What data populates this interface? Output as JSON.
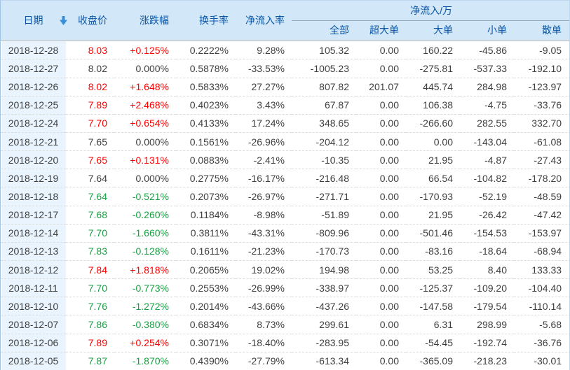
{
  "table": {
    "headers": {
      "date": "日期",
      "close": "收盘价",
      "change": "涨跌幅",
      "turnover": "换手率",
      "inflow_rate": "净流入率",
      "inflow_group": "净流入/万",
      "sub": [
        "全部",
        "超大单",
        "大单",
        "小单",
        "散单"
      ]
    },
    "rows": [
      {
        "date": "2018-12-28",
        "close": "8.03",
        "change": "+0.125%",
        "turnover": "0.2222%",
        "inflow_rate": "9.28%",
        "all": "105.32",
        "super_large": "0.00",
        "large": "160.22",
        "small": "-45.86",
        "scattered": "-9.05"
      },
      {
        "date": "2018-12-27",
        "close": "8.02",
        "change": "0.000%",
        "turnover": "0.5878%",
        "inflow_rate": "-33.53%",
        "all": "-1005.23",
        "super_large": "0.00",
        "large": "-275.81",
        "small": "-537.33",
        "scattered": "-192.10"
      },
      {
        "date": "2018-12-26",
        "close": "8.02",
        "change": "+1.648%",
        "turnover": "0.5833%",
        "inflow_rate": "27.27%",
        "all": "807.82",
        "super_large": "201.07",
        "large": "445.74",
        "small": "284.98",
        "scattered": "-123.97"
      },
      {
        "date": "2018-12-25",
        "close": "7.89",
        "change": "+2.468%",
        "turnover": "0.4023%",
        "inflow_rate": "3.43%",
        "all": "67.87",
        "super_large": "0.00",
        "large": "106.38",
        "small": "-4.75",
        "scattered": "-33.76"
      },
      {
        "date": "2018-12-24",
        "close": "7.70",
        "change": "+0.654%",
        "turnover": "0.4133%",
        "inflow_rate": "17.24%",
        "all": "348.65",
        "super_large": "0.00",
        "large": "-266.60",
        "small": "282.55",
        "scattered": "332.70"
      },
      {
        "date": "2018-12-21",
        "close": "7.65",
        "change": "0.000%",
        "turnover": "0.1561%",
        "inflow_rate": "-26.96%",
        "all": "-204.12",
        "super_large": "0.00",
        "large": "0.00",
        "small": "-143.04",
        "scattered": "-61.08"
      },
      {
        "date": "2018-12-20",
        "close": "7.65",
        "change": "+0.131%",
        "turnover": "0.0883%",
        "inflow_rate": "-2.41%",
        "all": "-10.35",
        "super_large": "0.00",
        "large": "21.95",
        "small": "-4.87",
        "scattered": "-27.43"
      },
      {
        "date": "2018-12-19",
        "close": "7.64",
        "change": "0.000%",
        "turnover": "0.2775%",
        "inflow_rate": "-16.17%",
        "all": "-216.48",
        "super_large": "0.00",
        "large": "66.54",
        "small": "-104.82",
        "scattered": "-178.20"
      },
      {
        "date": "2018-12-18",
        "close": "7.64",
        "change": "-0.521%",
        "turnover": "0.2073%",
        "inflow_rate": "-26.97%",
        "all": "-271.71",
        "super_large": "0.00",
        "large": "-170.93",
        "small": "-52.19",
        "scattered": "-48.59"
      },
      {
        "date": "2018-12-17",
        "close": "7.68",
        "change": "-0.260%",
        "turnover": "0.1184%",
        "inflow_rate": "-8.98%",
        "all": "-51.89",
        "super_large": "0.00",
        "large": "21.95",
        "small": "-26.42",
        "scattered": "-47.42"
      },
      {
        "date": "2018-12-14",
        "close": "7.70",
        "change": "-1.660%",
        "turnover": "0.3811%",
        "inflow_rate": "-43.31%",
        "all": "-809.96",
        "super_large": "0.00",
        "large": "-501.46",
        "small": "-154.53",
        "scattered": "-153.97"
      },
      {
        "date": "2018-12-13",
        "close": "7.83",
        "change": "-0.128%",
        "turnover": "0.1611%",
        "inflow_rate": "-21.23%",
        "all": "-170.73",
        "super_large": "0.00",
        "large": "-83.16",
        "small": "-18.64",
        "scattered": "-68.94"
      },
      {
        "date": "2018-12-12",
        "close": "7.84",
        "change": "+1.818%",
        "turnover": "0.2065%",
        "inflow_rate": "19.02%",
        "all": "194.98",
        "super_large": "0.00",
        "large": "53.25",
        "small": "8.40",
        "scattered": "133.33"
      },
      {
        "date": "2018-12-11",
        "close": "7.70",
        "change": "-0.773%",
        "turnover": "0.2553%",
        "inflow_rate": "-26.99%",
        "all": "-338.97",
        "super_large": "0.00",
        "large": "-125.37",
        "small": "-109.20",
        "scattered": "-104.40"
      },
      {
        "date": "2018-12-10",
        "close": "7.76",
        "change": "-1.272%",
        "turnover": "0.2014%",
        "inflow_rate": "-43.66%",
        "all": "-437.26",
        "super_large": "0.00",
        "large": "-147.58",
        "small": "-179.54",
        "scattered": "-110.14"
      },
      {
        "date": "2018-12-07",
        "close": "7.86",
        "change": "-0.380%",
        "turnover": "0.6834%",
        "inflow_rate": "8.73%",
        "all": "299.61",
        "super_large": "0.00",
        "large": "6.31",
        "small": "298.99",
        "scattered": "-5.68"
      },
      {
        "date": "2018-12-06",
        "close": "7.89",
        "change": "+0.254%",
        "turnover": "0.3071%",
        "inflow_rate": "-18.40%",
        "all": "-283.95",
        "super_large": "0.00",
        "large": "-54.45",
        "small": "-192.74",
        "scattered": "-36.76"
      },
      {
        "date": "2018-12-05",
        "close": "7.87",
        "change": "-1.870%",
        "turnover": "0.4390%",
        "inflow_rate": "-27.79%",
        "all": "-613.34",
        "super_large": "0.00",
        "large": "-365.09",
        "small": "-218.23",
        "scattered": "-30.01"
      }
    ]
  },
  "colors": {
    "header_bg": "#d2e8f9",
    "header_text": "#0a55a5",
    "date_col_bg": "#e9f4fe",
    "up_red": "#ff0000",
    "down_green": "#17a143",
    "body_text": "#3f3f3f",
    "sort_arrow": "#368fd9"
  },
  "icons": {
    "sort_desc": "sort-descending-arrow"
  }
}
